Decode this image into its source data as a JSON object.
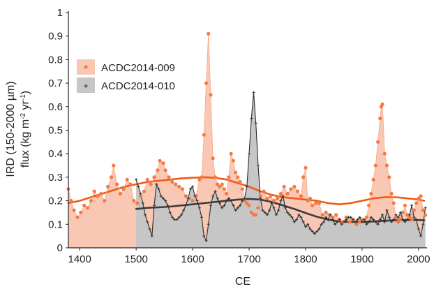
{
  "chart_data": {
    "type": "line",
    "xlabel": "CE",
    "ylabel_line1": "IRD (150-2000 µm)",
    "ylabel_line2_prefix": "flux (kg m",
    "ylabel_line2_sup1": "-2",
    "ylabel_line2_mid": " yr",
    "ylabel_line2_sup2": "-1",
    "ylabel_line2_suffix": ")",
    "xlim": [
      1380,
      2015
    ],
    "ylim": [
      0,
      1
    ],
    "x_ticks": [
      1400,
      1500,
      1600,
      1700,
      1800,
      1900,
      2000
    ],
    "x_tick_labels": [
      "1400",
      "1500",
      "1600",
      "1700",
      "1800",
      "1900",
      "2000"
    ],
    "y_ticks": [
      0,
      0.1,
      0.2,
      0.3,
      0.4,
      0.5,
      0.6,
      0.7,
      0.8,
      0.9,
      1
    ],
    "y_tick_labels": [
      "0",
      "0.1",
      "0.2",
      "0.3",
      "0.4",
      "0.5",
      "0.6",
      "0.7",
      "0.8",
      "0.9",
      "1"
    ],
    "legend_position": "upper-left",
    "series": [
      {
        "name": "ACDC2014-009",
        "fill_color": "#f9c8b4",
        "point_color": "#f47a45",
        "trend_color": "#f05a14",
        "x": [
          1380,
          1385,
          1390,
          1396,
          1402,
          1408,
          1414,
          1420,
          1426,
          1432,
          1438,
          1444,
          1450,
          1456,
          1460,
          1466,
          1472,
          1478,
          1484,
          1490,
          1496,
          1502,
          1508,
          1514,
          1520,
          1526,
          1532,
          1538,
          1542,
          1548,
          1552,
          1558,
          1564,
          1570,
          1576,
          1582,
          1588,
          1594,
          1600,
          1606,
          1612,
          1616,
          1620,
          1624,
          1628,
          1632,
          1636,
          1640,
          1644,
          1648,
          1652,
          1656,
          1660,
          1664,
          1668,
          1672,
          1676,
          1680,
          1684,
          1688,
          1692,
          1696,
          1700,
          1704,
          1708,
          1712,
          1716,
          1720,
          1726,
          1732,
          1738,
          1744,
          1750,
          1756,
          1762,
          1768,
          1774,
          1780,
          1786,
          1792,
          1796,
          1800,
          1804,
          1808,
          1812,
          1818,
          1824,
          1830,
          1836,
          1842,
          1848,
          1854,
          1860,
          1866,
          1872,
          1878,
          1884,
          1890,
          1896,
          1902,
          1908,
          1912,
          1916,
          1920,
          1924,
          1928,
          1932,
          1934,
          1936,
          1940,
          1944,
          1948,
          1952,
          1956,
          1960,
          1964,
          1968,
          1972,
          1976,
          1980,
          1984,
          1988,
          1992,
          1996,
          2000,
          2004,
          2008,
          2012
        ],
        "values": [
          0.25,
          0.2,
          0.16,
          0.13,
          0.15,
          0.18,
          0.17,
          0.2,
          0.24,
          0.22,
          0.23,
          0.2,
          0.26,
          0.3,
          0.35,
          0.27,
          0.23,
          0.25,
          0.29,
          0.27,
          0.2,
          0.19,
          0.22,
          0.24,
          0.29,
          0.27,
          0.3,
          0.33,
          0.37,
          0.36,
          0.33,
          0.3,
          0.28,
          0.27,
          0.26,
          0.25,
          0.22,
          0.21,
          0.2,
          0.22,
          0.29,
          0.3,
          0.48,
          0.7,
          0.91,
          0.65,
          0.38,
          0.3,
          0.27,
          0.26,
          0.27,
          0.25,
          0.23,
          0.3,
          0.4,
          0.37,
          0.32,
          0.3,
          0.28,
          0.25,
          0.2,
          0.19,
          0.18,
          0.15,
          0.14,
          0.14,
          0.17,
          0.22,
          0.24,
          0.21,
          0.22,
          0.2,
          0.21,
          0.23,
          0.26,
          0.23,
          0.25,
          0.26,
          0.24,
          0.22,
          0.3,
          0.34,
          0.2,
          0.21,
          0.18,
          0.19,
          0.19,
          0.14,
          0.15,
          0.14,
          0.13,
          0.14,
          0.12,
          0.11,
          0.13,
          0.11,
          0.12,
          0.1,
          0.11,
          0.12,
          0.13,
          0.18,
          0.23,
          0.29,
          0.35,
          0.45,
          0.55,
          0.6,
          0.61,
          0.4,
          0.35,
          0.3,
          0.23,
          0.19,
          0.13,
          0.11,
          0.12,
          0.15,
          0.18,
          0.14,
          0.13,
          0.12,
          0.16,
          0.19,
          0.21,
          0.22,
          0.16,
          0.14
        ],
        "trend_x": [
          1380,
          1400,
          1420,
          1440,
          1460,
          1480,
          1500,
          1520,
          1540,
          1560,
          1580,
          1600,
          1620,
          1640,
          1660,
          1680,
          1700,
          1720,
          1740,
          1760,
          1780,
          1800,
          1820,
          1840,
          1860,
          1880,
          1900,
          1920,
          1940,
          1960,
          1980,
          2000,
          2010
        ],
        "trend_values": [
          0.19,
          0.2,
          0.215,
          0.23,
          0.245,
          0.26,
          0.27,
          0.28,
          0.285,
          0.29,
          0.295,
          0.298,
          0.3,
          0.298,
          0.29,
          0.275,
          0.26,
          0.24,
          0.225,
          0.215,
          0.21,
          0.205,
          0.2,
          0.19,
          0.185,
          0.19,
          0.2,
          0.21,
          0.215,
          0.215,
          0.21,
          0.205,
          0.2
        ]
      },
      {
        "name": "ACDC2014-010",
        "fill_color": "#c6c6c6",
        "point_color": "#333333",
        "trend_color": "#3c3c3c",
        "x": [
          1500,
          1504,
          1508,
          1512,
          1516,
          1520,
          1524,
          1528,
          1532,
          1536,
          1540,
          1544,
          1548,
          1552,
          1556,
          1560,
          1564,
          1568,
          1572,
          1576,
          1580,
          1584,
          1588,
          1592,
          1596,
          1600,
          1604,
          1608,
          1612,
          1616,
          1620,
          1624,
          1628,
          1632,
          1636,
          1640,
          1644,
          1648,
          1652,
          1656,
          1660,
          1664,
          1668,
          1672,
          1676,
          1680,
          1684,
          1688,
          1692,
          1696,
          1700,
          1704,
          1708,
          1712,
          1716,
          1720,
          1724,
          1728,
          1732,
          1736,
          1740,
          1744,
          1748,
          1752,
          1756,
          1760,
          1764,
          1768,
          1772,
          1776,
          1780,
          1784,
          1788,
          1792,
          1796,
          1800,
          1804,
          1808,
          1812,
          1816,
          1820,
          1824,
          1828,
          1832,
          1836,
          1840,
          1844,
          1848,
          1852,
          1856,
          1860,
          1864,
          1868,
          1872,
          1876,
          1880,
          1884,
          1888,
          1892,
          1896,
          1900,
          1904,
          1908,
          1912,
          1916,
          1920,
          1924,
          1928,
          1932,
          1936,
          1940,
          1944,
          1948,
          1952,
          1956,
          1960,
          1964,
          1968,
          1972,
          1976,
          1980,
          1984,
          1988,
          1992,
          1996,
          2000,
          2004,
          2008,
          2012
        ],
        "values": [
          0.29,
          0.26,
          0.23,
          0.19,
          0.14,
          0.11,
          0.08,
          0.05,
          0.18,
          0.27,
          0.25,
          0.22,
          0.21,
          0.2,
          0.18,
          0.15,
          0.13,
          0.12,
          0.12,
          0.13,
          0.14,
          0.16,
          0.18,
          0.21,
          0.25,
          0.26,
          0.22,
          0.2,
          0.17,
          0.13,
          0.05,
          0.03,
          0.1,
          0.18,
          0.22,
          0.24,
          0.21,
          0.19,
          0.17,
          0.18,
          0.2,
          0.21,
          0.2,
          0.18,
          0.16,
          0.17,
          0.18,
          0.2,
          0.21,
          0.26,
          0.4,
          0.55,
          0.66,
          0.53,
          0.35,
          0.21,
          0.16,
          0.15,
          0.14,
          0.16,
          0.19,
          0.17,
          0.14,
          0.16,
          0.2,
          0.22,
          0.17,
          0.15,
          0.14,
          0.13,
          0.11,
          0.12,
          0.14,
          0.13,
          0.11,
          0.09,
          0.1,
          0.08,
          0.07,
          0.06,
          0.07,
          0.08,
          0.1,
          0.11,
          0.13,
          0.12,
          0.14,
          0.12,
          0.1,
          0.11,
          0.12,
          0.1,
          0.11,
          0.12,
          0.13,
          0.13,
          0.12,
          0.11,
          0.12,
          0.13,
          0.11,
          0.12,
          0.1,
          0.11,
          0.13,
          0.12,
          0.11,
          0.1,
          0.12,
          0.14,
          0.11,
          0.16,
          0.13,
          0.11,
          0.12,
          0.14,
          0.13,
          0.15,
          0.12,
          0.11,
          0.12,
          0.14,
          0.18,
          0.13,
          0.12,
          0.08,
          0.05,
          0.1,
          0.17
        ],
        "trend_x": [
          1500,
          1520,
          1540,
          1560,
          1580,
          1600,
          1620,
          1640,
          1660,
          1680,
          1700,
          1720,
          1740,
          1760,
          1780,
          1800,
          1820,
          1840,
          1860,
          1880,
          1900,
          1920,
          1940,
          1960,
          1980,
          2000,
          2010
        ],
        "trend_values": [
          0.165,
          0.17,
          0.172,
          0.175,
          0.18,
          0.185,
          0.19,
          0.195,
          0.2,
          0.205,
          0.208,
          0.205,
          0.195,
          0.18,
          0.165,
          0.148,
          0.132,
          0.12,
          0.112,
          0.11,
          0.11,
          0.112,
          0.115,
          0.117,
          0.118,
          0.118,
          0.117
        ]
      }
    ]
  }
}
